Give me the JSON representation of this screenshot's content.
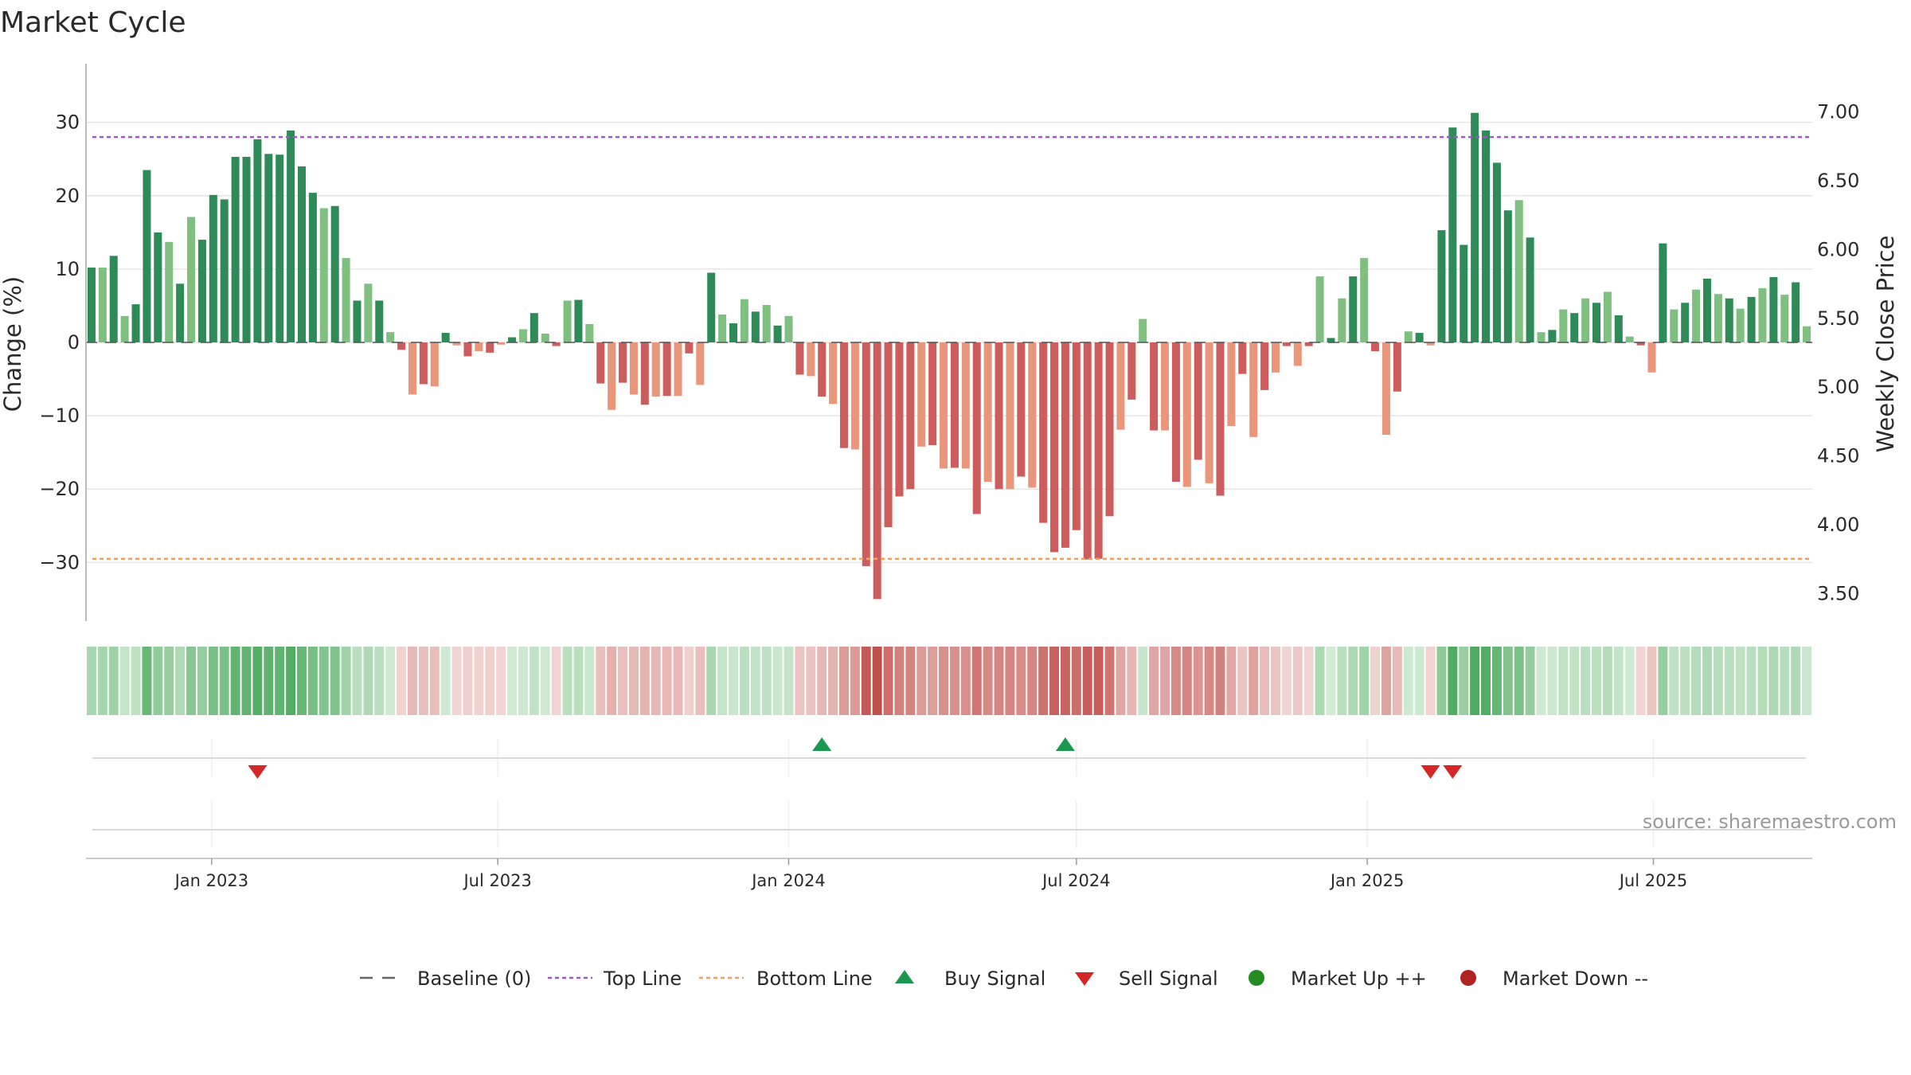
{
  "title": "Market Cycle",
  "source": "source: sharemaestro.com",
  "colors": {
    "up_strong": "#2e8b57",
    "up_light": "#7fbf7f",
    "down_strong": "#cd5c5c",
    "down_light": "#e9967a",
    "top_line": "#9b59d0",
    "bottom_line": "#f0a060",
    "buy": "#1a9850",
    "sell": "#d62728",
    "market_up": "#228b22",
    "market_down": "#b22222"
  },
  "legend": [
    {
      "key": "baseline",
      "label": "Baseline (0)",
      "symbol": "dash",
      "color": "#666666"
    },
    {
      "key": "top",
      "label": "Top Line",
      "symbol": "dot-line",
      "color": "#9b59d0"
    },
    {
      "key": "bottom",
      "label": "Bottom Line",
      "symbol": "dot-line",
      "color": "#f0a060"
    },
    {
      "key": "buy",
      "label": "Buy Signal",
      "symbol": "triangle-up",
      "color": "#1a9850"
    },
    {
      "key": "sell",
      "label": "Sell Signal",
      "symbol": "triangle-down",
      "color": "#d62728"
    },
    {
      "key": "mup",
      "label": "Market Up ++",
      "symbol": "circle",
      "color": "#228b22"
    },
    {
      "key": "mdown",
      "label": "Market Down --",
      "symbol": "circle",
      "color": "#b22222"
    }
  ],
  "chart_data": {
    "type": "bar",
    "start_date": "2022-10-17",
    "frequency": "weekly",
    "ylabel": "Change (%)",
    "y2label": "Weekly Close Price",
    "ylim": [
      -38,
      38
    ],
    "y2lim": [
      3.3,
      7.35
    ],
    "yticks": [
      30,
      20,
      10,
      0,
      -10,
      -20,
      -30
    ],
    "yticklabels": [
      "30",
      "20",
      "10",
      "0",
      "−10",
      "−20",
      "−30"
    ],
    "y2ticks": [
      7.0,
      6.5,
      6.0,
      5.5,
      5.0,
      4.5,
      4.0,
      3.5
    ],
    "y2ticklabels": [
      "7.00",
      "6.50",
      "6.00",
      "5.50",
      "5.00",
      "4.50",
      "4.00",
      "3.50"
    ],
    "top_line": 28,
    "bottom_line": -29.5,
    "xticks": [
      {
        "date": "2023-01-01",
        "label": "Jan 2023"
      },
      {
        "date": "2023-07-01",
        "label": "Jul 2023"
      },
      {
        "date": "2024-01-01",
        "label": "Jan 2024"
      },
      {
        "date": "2024-07-01",
        "label": "Jul 2024"
      },
      {
        "date": "2025-01-01",
        "label": "Jan 2025"
      },
      {
        "date": "2025-07-01",
        "label": "Jul 2025"
      }
    ],
    "values": [
      10.2,
      10.2,
      11.8,
      3.6,
      5.2,
      23.5,
      15,
      13.7,
      8,
      17.1,
      14,
      20.1,
      19.5,
      25.3,
      25.3,
      27.7,
      25.7,
      25.6,
      28.9,
      24,
      20.4,
      18.3,
      18.6,
      11.5,
      5.7,
      8,
      5.7,
      1.4,
      -1,
      -7.1,
      -5.7,
      -6,
      1.3,
      -0.4,
      -1.9,
      -1.2,
      -1.4,
      -0.3,
      0.7,
      1.8,
      4,
      1.2,
      -0.5,
      5.7,
      5.8,
      2.5,
      -5.6,
      -9.2,
      -5.5,
      -7.1,
      -8.5,
      -7.4,
      -7.3,
      -7.3,
      -1.5,
      -5.8,
      9.5,
      3.8,
      2.6,
      5.9,
      4.2,
      5.1,
      2.3,
      3.6,
      -4.4,
      -4.6,
      -7.4,
      -8.4,
      -14.4,
      -14.6,
      -30.5,
      -35,
      -25.2,
      -21,
      -20,
      -14.2,
      -14,
      -17.2,
      -17.1,
      -17.2,
      -23.4,
      -19,
      -20,
      -20,
      -18.3,
      -19.8,
      -24.6,
      -28.6,
      -28,
      -25.6,
      -29.6,
      -29.5,
      -23.7,
      -11.9,
      -7.8,
      3.2,
      -12,
      -12,
      -19,
      -19.7,
      -16,
      -19.2,
      -20.9,
      -11.4,
      -4.3,
      -12.9,
      -6.5,
      -4.1,
      -0.5,
      -3.2,
      -0.5,
      9,
      0.6,
      6,
      9,
      11.5,
      -1.2,
      -12.6,
      -6.7,
      1.5,
      1.3,
      -0.4,
      15.3,
      29.3,
      13.3,
      31.3,
      28.9,
      24.5,
      18,
      19.4,
      14.3,
      1.4,
      1.7,
      4.5,
      4,
      6,
      5.4,
      6.9,
      3.7,
      0.8,
      -0.4,
      -4.1,
      13.5,
      4.5,
      5.4,
      7.2,
      8.7,
      6.6,
      6,
      4.6,
      6.2,
      7.4,
      8.9,
      6.5,
      8.2,
      2.2
    ],
    "buy_signals": [
      "2024-01-22",
      "2024-06-24"
    ],
    "sell_signals": [
      "2023-01-30",
      "2025-02-10",
      "2025-02-24"
    ]
  }
}
